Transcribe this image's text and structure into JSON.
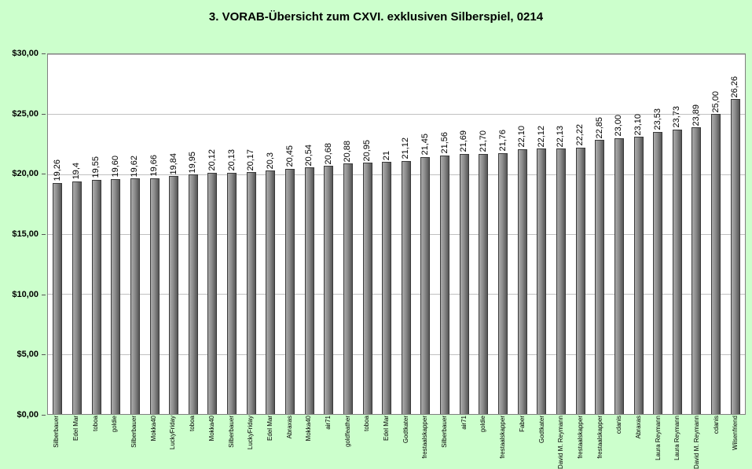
{
  "chart_data": {
    "type": "bar",
    "title": "3. VORAB-Übersicht zum CXVI. exklusiven Silberspiel, 0214",
    "xlabel": "",
    "ylabel": "",
    "ylim": [
      0,
      30
    ],
    "grid": true,
    "legend": "none",
    "y_ticks": [
      "$30,00",
      "$25,00",
      "$20,00",
      "$15,00",
      "$10,00",
      "$5,00",
      "$0,00"
    ],
    "categories": [
      "Silberbauer",
      "Edel Mar",
      "toboa",
      "goldie",
      "Silberbauer",
      "Mokka40",
      "LuckyFriday",
      "toboa",
      "Mokka40",
      "Silberbauer",
      "LuckyFriday",
      "Edel Mar",
      "Abraxas",
      "Mokka40",
      "air71",
      "goldfeather",
      "toboa",
      "Edel Mar",
      "Godtkater",
      "frestaalskapper",
      "Silberbauer",
      "air71",
      "goldie",
      "frestaalskapper",
      "Faber",
      "Godtkater",
      "David M. Reymann",
      "frestaalskapper",
      "frestaalskapper",
      "cdanis",
      "Abraxas",
      "Laura Reymann",
      "Laura Reymann",
      "David M. Reymann",
      "cdanis",
      "Wilsenfriend"
    ],
    "values": [
      19.26,
      19.4,
      19.55,
      19.6,
      19.62,
      19.66,
      19.84,
      19.95,
      20.12,
      20.13,
      20.17,
      20.3,
      20.45,
      20.54,
      20.68,
      20.88,
      20.95,
      21,
      21.12,
      21.45,
      21.56,
      21.69,
      21.7,
      21.76,
      22.1,
      22.12,
      22.13,
      22.22,
      22.85,
      23.0,
      23.1,
      23.53,
      23.73,
      23.89,
      25.0,
      26.26
    ],
    "value_labels": [
      "19,26",
      "19,4",
      "19,55",
      "19,60",
      "19,62",
      "19,66",
      "19,84",
      "19,95",
      "20,12",
      "20,13",
      "20,17",
      "20,3",
      "20,45",
      "20,54",
      "20,68",
      "20,88",
      "20,95",
      "21",
      "21,12",
      "21,45",
      "21,56",
      "21,69",
      "21,70",
      "21,76",
      "22,10",
      "22,12",
      "22,13",
      "22,22",
      "22,85",
      "23,00",
      "23,10",
      "23,53",
      "23,73",
      "23,89",
      "25,00",
      "26,26"
    ],
    "colors": {
      "background": "#ccffcc",
      "plot_bg": "#ffffff",
      "gridline": "#c0c0c0",
      "bar_light": "#ababab",
      "bar_dark": "#555555"
    }
  }
}
